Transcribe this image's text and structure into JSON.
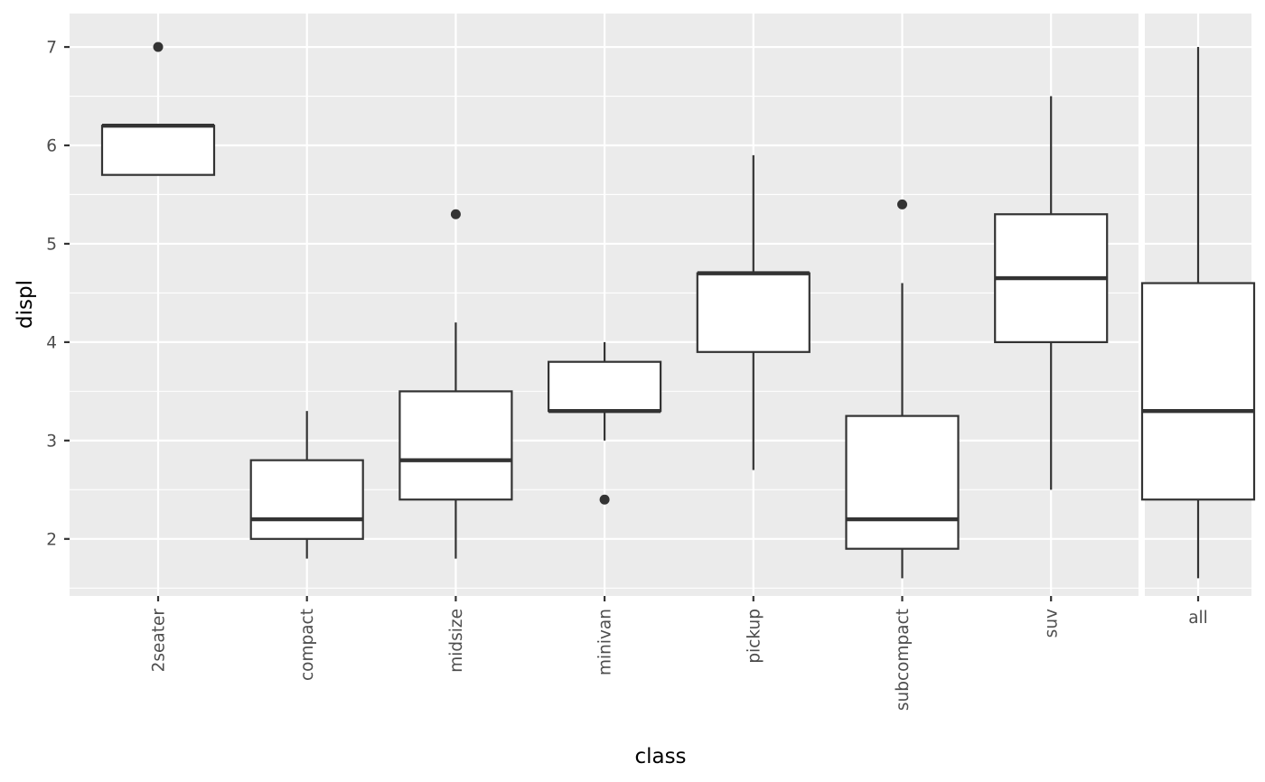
{
  "chart_data": {
    "type": "boxplot",
    "xlabel": "class",
    "ylabel": "displ",
    "ylim": [
      1.42,
      7.34
    ],
    "yticks": [
      2,
      3,
      4,
      5,
      6,
      7
    ],
    "grid": true,
    "legend": "none",
    "panels": [
      {
        "categories": [
          "2seater",
          "compact",
          "midsize",
          "minivan",
          "pickup",
          "subcompact",
          "suv"
        ],
        "boxes": [
          {
            "q1": 5.7,
            "median": 6.2,
            "q3": 6.2,
            "whisker_low": 5.7,
            "whisker_high": 6.2,
            "outliers": [
              7.0
            ]
          },
          {
            "q1": 2.0,
            "median": 2.2,
            "q3": 2.8,
            "whisker_low": 1.8,
            "whisker_high": 3.3,
            "outliers": []
          },
          {
            "q1": 2.4,
            "median": 2.8,
            "q3": 3.5,
            "whisker_low": 1.8,
            "whisker_high": 4.2,
            "outliers": [
              5.3
            ]
          },
          {
            "q1": 3.3,
            "median": 3.3,
            "q3": 3.8,
            "whisker_low": 3.0,
            "whisker_high": 4.0,
            "outliers": [
              2.4
            ]
          },
          {
            "q1": 3.9,
            "median": 4.7,
            "q3": 4.7,
            "whisker_low": 2.7,
            "whisker_high": 5.9,
            "outliers": []
          },
          {
            "q1": 1.9,
            "median": 2.2,
            "q3": 3.25,
            "whisker_low": 1.6,
            "whisker_high": 4.6,
            "outliers": [
              5.4
            ]
          },
          {
            "q1": 4.0,
            "median": 4.65,
            "q3": 5.3,
            "whisker_low": 2.5,
            "whisker_high": 6.5,
            "outliers": []
          }
        ]
      },
      {
        "categories": [
          "all"
        ],
        "boxes": [
          {
            "q1": 2.4,
            "median": 3.3,
            "q3": 4.6,
            "whisker_low": 1.6,
            "whisker_high": 7.0,
            "outliers": []
          }
        ]
      }
    ]
  },
  "colors": {
    "panel_background": "#EBEBEB",
    "grid": "#FFFFFF",
    "box_fill": "#FFFFFF",
    "box_outline": "#333333",
    "tick_text": "#4D4D4D",
    "title_text": "#000000"
  }
}
